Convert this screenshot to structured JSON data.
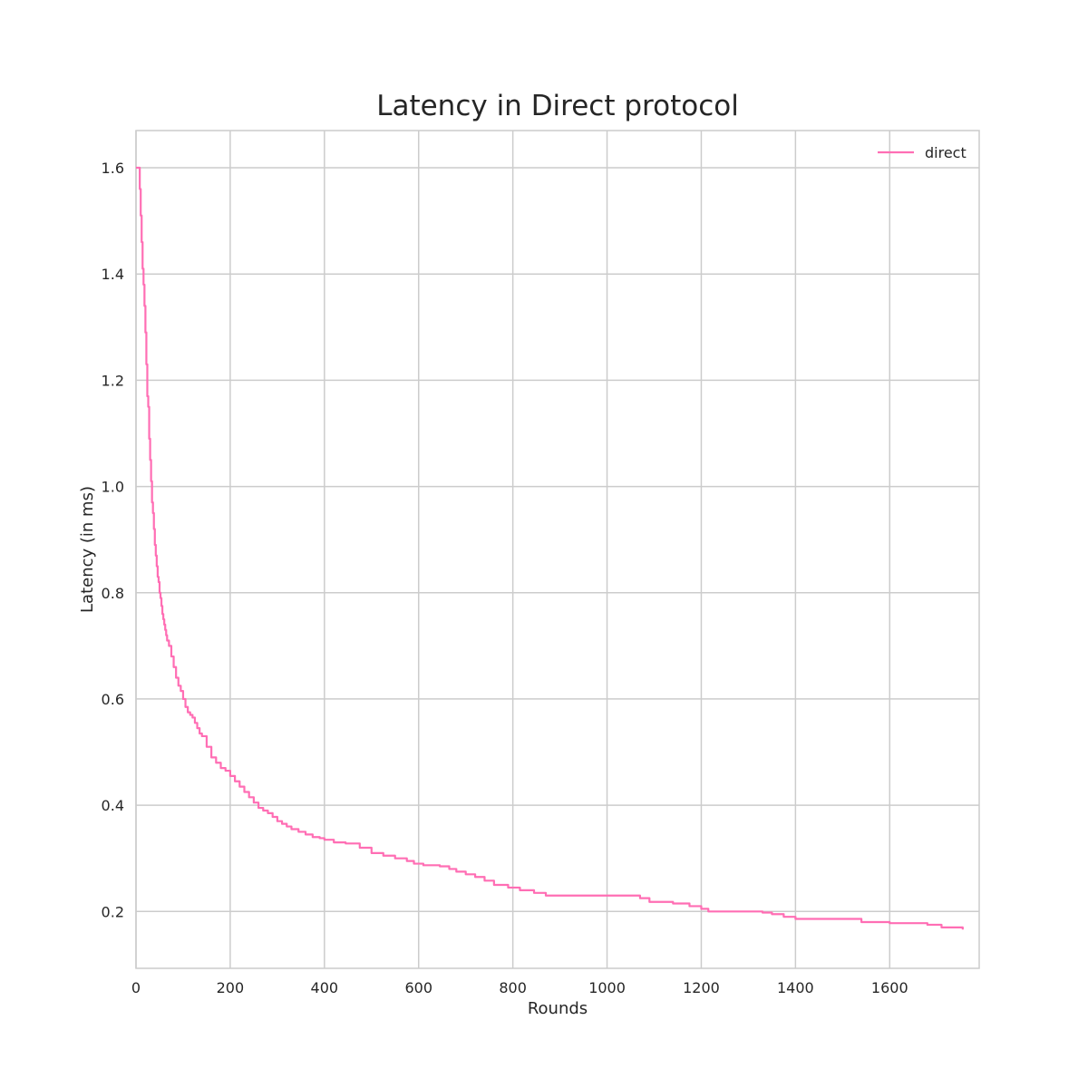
{
  "chart_data": {
    "type": "line",
    "title": "Latency in Direct protocol",
    "xlabel": "Rounds",
    "ylabel": "Latency (in ms)",
    "xlim": [
      0,
      1790
    ],
    "ylim": [
      0.093,
      1.67
    ],
    "xticks": [
      0,
      200,
      400,
      600,
      800,
      1000,
      1200,
      1400,
      1600
    ],
    "yticks": [
      0.2,
      0.4,
      0.6,
      0.8,
      1.0,
      1.2,
      1.4,
      1.6
    ],
    "ytick_labels": [
      "0.2",
      "0.4",
      "0.6",
      "0.8",
      "1.0",
      "1.2",
      "1.4",
      "1.6"
    ],
    "grid": true,
    "legend_position": "top-right",
    "colors": {
      "direct": "#ff6eb4",
      "grid": "#cccccc",
      "text": "#262626"
    },
    "series": [
      {
        "name": "direct",
        "step": true,
        "x": [
          0,
          5,
          8,
          10,
          12,
          14,
          16,
          18,
          20,
          22,
          24,
          26,
          28,
          30,
          32,
          34,
          36,
          38,
          40,
          42,
          44,
          46,
          48,
          50,
          52,
          54,
          56,
          58,
          60,
          62,
          64,
          66,
          70,
          75,
          80,
          85,
          90,
          95,
          100,
          105,
          110,
          115,
          120,
          125,
          130,
          135,
          140,
          150,
          160,
          170,
          180,
          190,
          200,
          210,
          220,
          230,
          240,
          250,
          260,
          270,
          280,
          290,
          300,
          310,
          320,
          330,
          345,
          360,
          375,
          390,
          400,
          420,
          445,
          475,
          500,
          525,
          550,
          575,
          590,
          610,
          645,
          665,
          680,
          700,
          720,
          740,
          760,
          790,
          815,
          845,
          870,
          900,
          1000,
          1070,
          1090,
          1140,
          1175,
          1200,
          1215,
          1260,
          1330,
          1350,
          1375,
          1400,
          1500,
          1540,
          1600,
          1680,
          1710,
          1755
        ],
        "y": [
          1.6,
          1.6,
          1.56,
          1.51,
          1.46,
          1.41,
          1.38,
          1.34,
          1.29,
          1.23,
          1.17,
          1.15,
          1.09,
          1.05,
          1.01,
          0.97,
          0.95,
          0.92,
          0.89,
          0.87,
          0.85,
          0.83,
          0.82,
          0.8,
          0.79,
          0.775,
          0.76,
          0.75,
          0.74,
          0.73,
          0.72,
          0.71,
          0.7,
          0.68,
          0.66,
          0.64,
          0.625,
          0.615,
          0.6,
          0.585,
          0.575,
          0.57,
          0.565,
          0.555,
          0.545,
          0.535,
          0.53,
          0.51,
          0.49,
          0.48,
          0.47,
          0.465,
          0.455,
          0.445,
          0.435,
          0.425,
          0.415,
          0.405,
          0.395,
          0.39,
          0.385,
          0.378,
          0.37,
          0.365,
          0.36,
          0.355,
          0.35,
          0.345,
          0.34,
          0.338,
          0.335,
          0.33,
          0.328,
          0.32,
          0.31,
          0.305,
          0.3,
          0.295,
          0.29,
          0.287,
          0.285,
          0.28,
          0.275,
          0.27,
          0.265,
          0.258,
          0.25,
          0.245,
          0.24,
          0.235,
          0.23,
          0.23,
          0.23,
          0.225,
          0.218,
          0.215,
          0.21,
          0.205,
          0.2,
          0.2,
          0.198,
          0.195,
          0.19,
          0.186,
          0.186,
          0.18,
          0.178,
          0.175,
          0.17,
          0.166
        ]
      }
    ]
  }
}
